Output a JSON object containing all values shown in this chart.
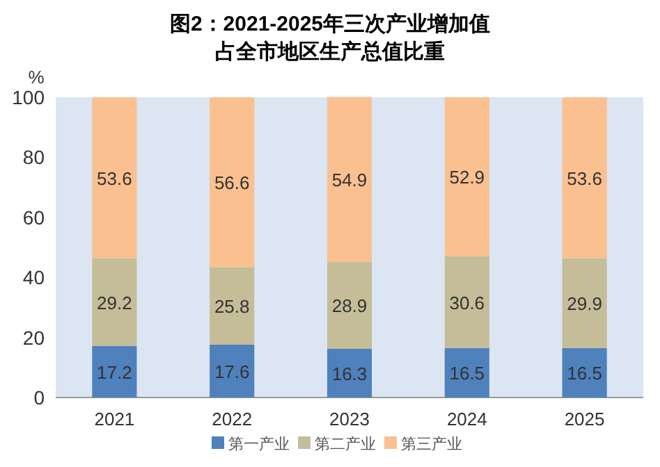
{
  "chart_data": {
    "type": "bar",
    "stacked": true,
    "title": "图2：2021-2025年三次产业增加值",
    "subtitle": "占全市地区生产总值比重",
    "ylabel": "%",
    "categories": [
      "2021",
      "2022",
      "2023",
      "2024",
      "2025"
    ],
    "series": [
      {
        "name": "第一产业",
        "color": "#4f81bd",
        "values": [
          17.2,
          17.6,
          16.3,
          16.5,
          16.5
        ]
      },
      {
        "name": "第二产业",
        "color": "#c4bd97",
        "values": [
          29.2,
          25.8,
          28.9,
          30.6,
          29.9
        ]
      },
      {
        "name": "第三产业",
        "color": "#fac090",
        "values": [
          53.6,
          56.6,
          54.9,
          52.9,
          53.6
        ]
      }
    ],
    "ylim": [
      0,
      100
    ],
    "yticks": [
      0,
      20,
      40,
      60,
      80,
      100
    ],
    "data_labels": true,
    "legend": "bottom"
  }
}
